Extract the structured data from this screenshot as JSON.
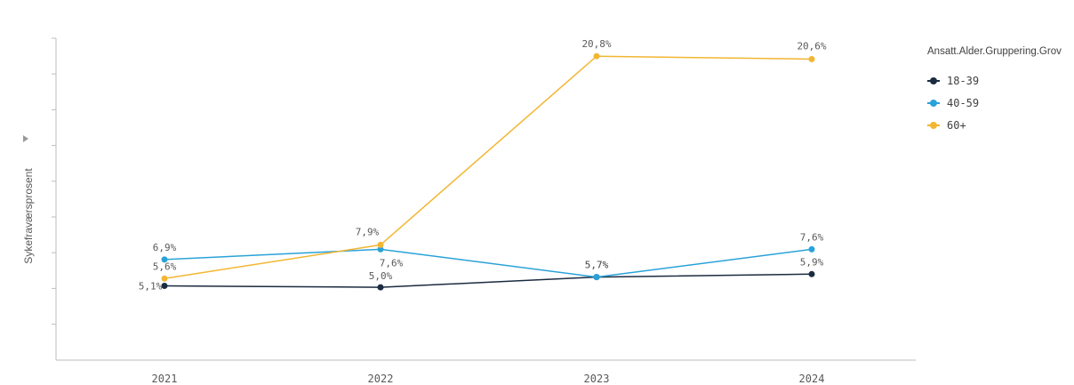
{
  "chart_data": {
    "type": "line",
    "ylabel": "Sykefraværsprosent",
    "categories": [
      "2021",
      "2022",
      "2023",
      "2024"
    ],
    "series": [
      {
        "name": "18-39",
        "color": "#1b2b40",
        "values": [
          5.1,
          5.0,
          5.7,
          5.9
        ],
        "labels": [
          "5,1%",
          "5,0%",
          "5,7%",
          "5,9%"
        ]
      },
      {
        "name": "40-59",
        "color": "#2aa2d8",
        "values": [
          6.9,
          7.6,
          5.7,
          7.6
        ],
        "labels": [
          "6,9%",
          "7,6%",
          "5,7%",
          "7,6%"
        ]
      },
      {
        "name": "60+",
        "color": "#f2b632",
        "values": [
          5.6,
          7.9,
          20.8,
          20.6
        ],
        "labels": [
          "5,6%",
          "7,9%",
          "20,8%",
          "20,6%"
        ]
      }
    ],
    "ylim": [
      0,
      100
    ],
    "legend": {
      "title": "Ansatt.Alder.Gruppering.Grov",
      "position": "right"
    },
    "grid": false
  }
}
